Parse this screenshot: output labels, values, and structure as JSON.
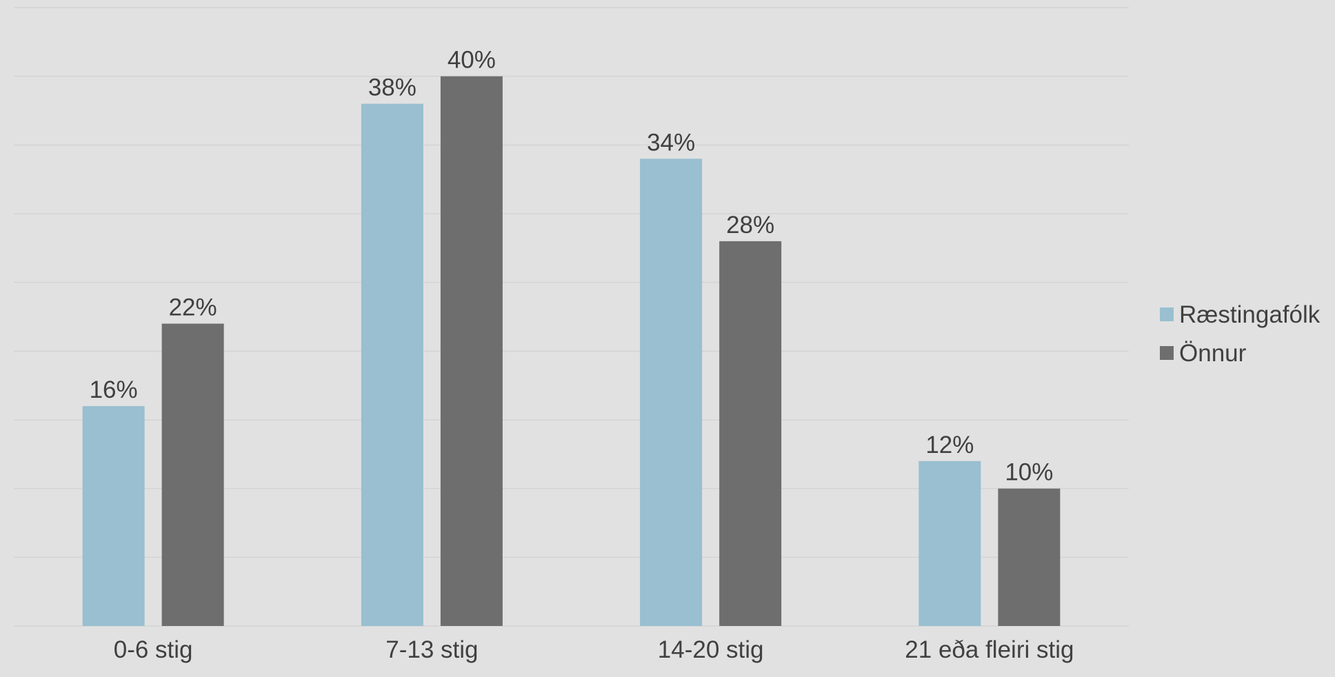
{
  "chart_data": {
    "type": "bar",
    "categories": [
      "0-6 stig",
      "7-13 stig",
      "14-20 stig",
      "21 eða fleiri stig"
    ],
    "series": [
      {
        "name": "Ræstingafólk",
        "color": "#99bfd0",
        "values": [
          16,
          38,
          34,
          12
        ],
        "labels": [
          "16%",
          "38%",
          "34%",
          "12%"
        ]
      },
      {
        "name": "Önnur",
        "color": "#6e6e6e",
        "values": [
          22,
          40,
          28,
          10
        ],
        "labels": [
          "22%",
          "40%",
          "28%",
          "10%"
        ]
      }
    ],
    "ylim": [
      0,
      45
    ],
    "y_grid_step": 5,
    "grid": true,
    "y_axis_labels_shown": false,
    "legend_position": "right",
    "text_color": "#404040",
    "grid_color": "#d4d4d4",
    "background": "#e1e1e1"
  }
}
